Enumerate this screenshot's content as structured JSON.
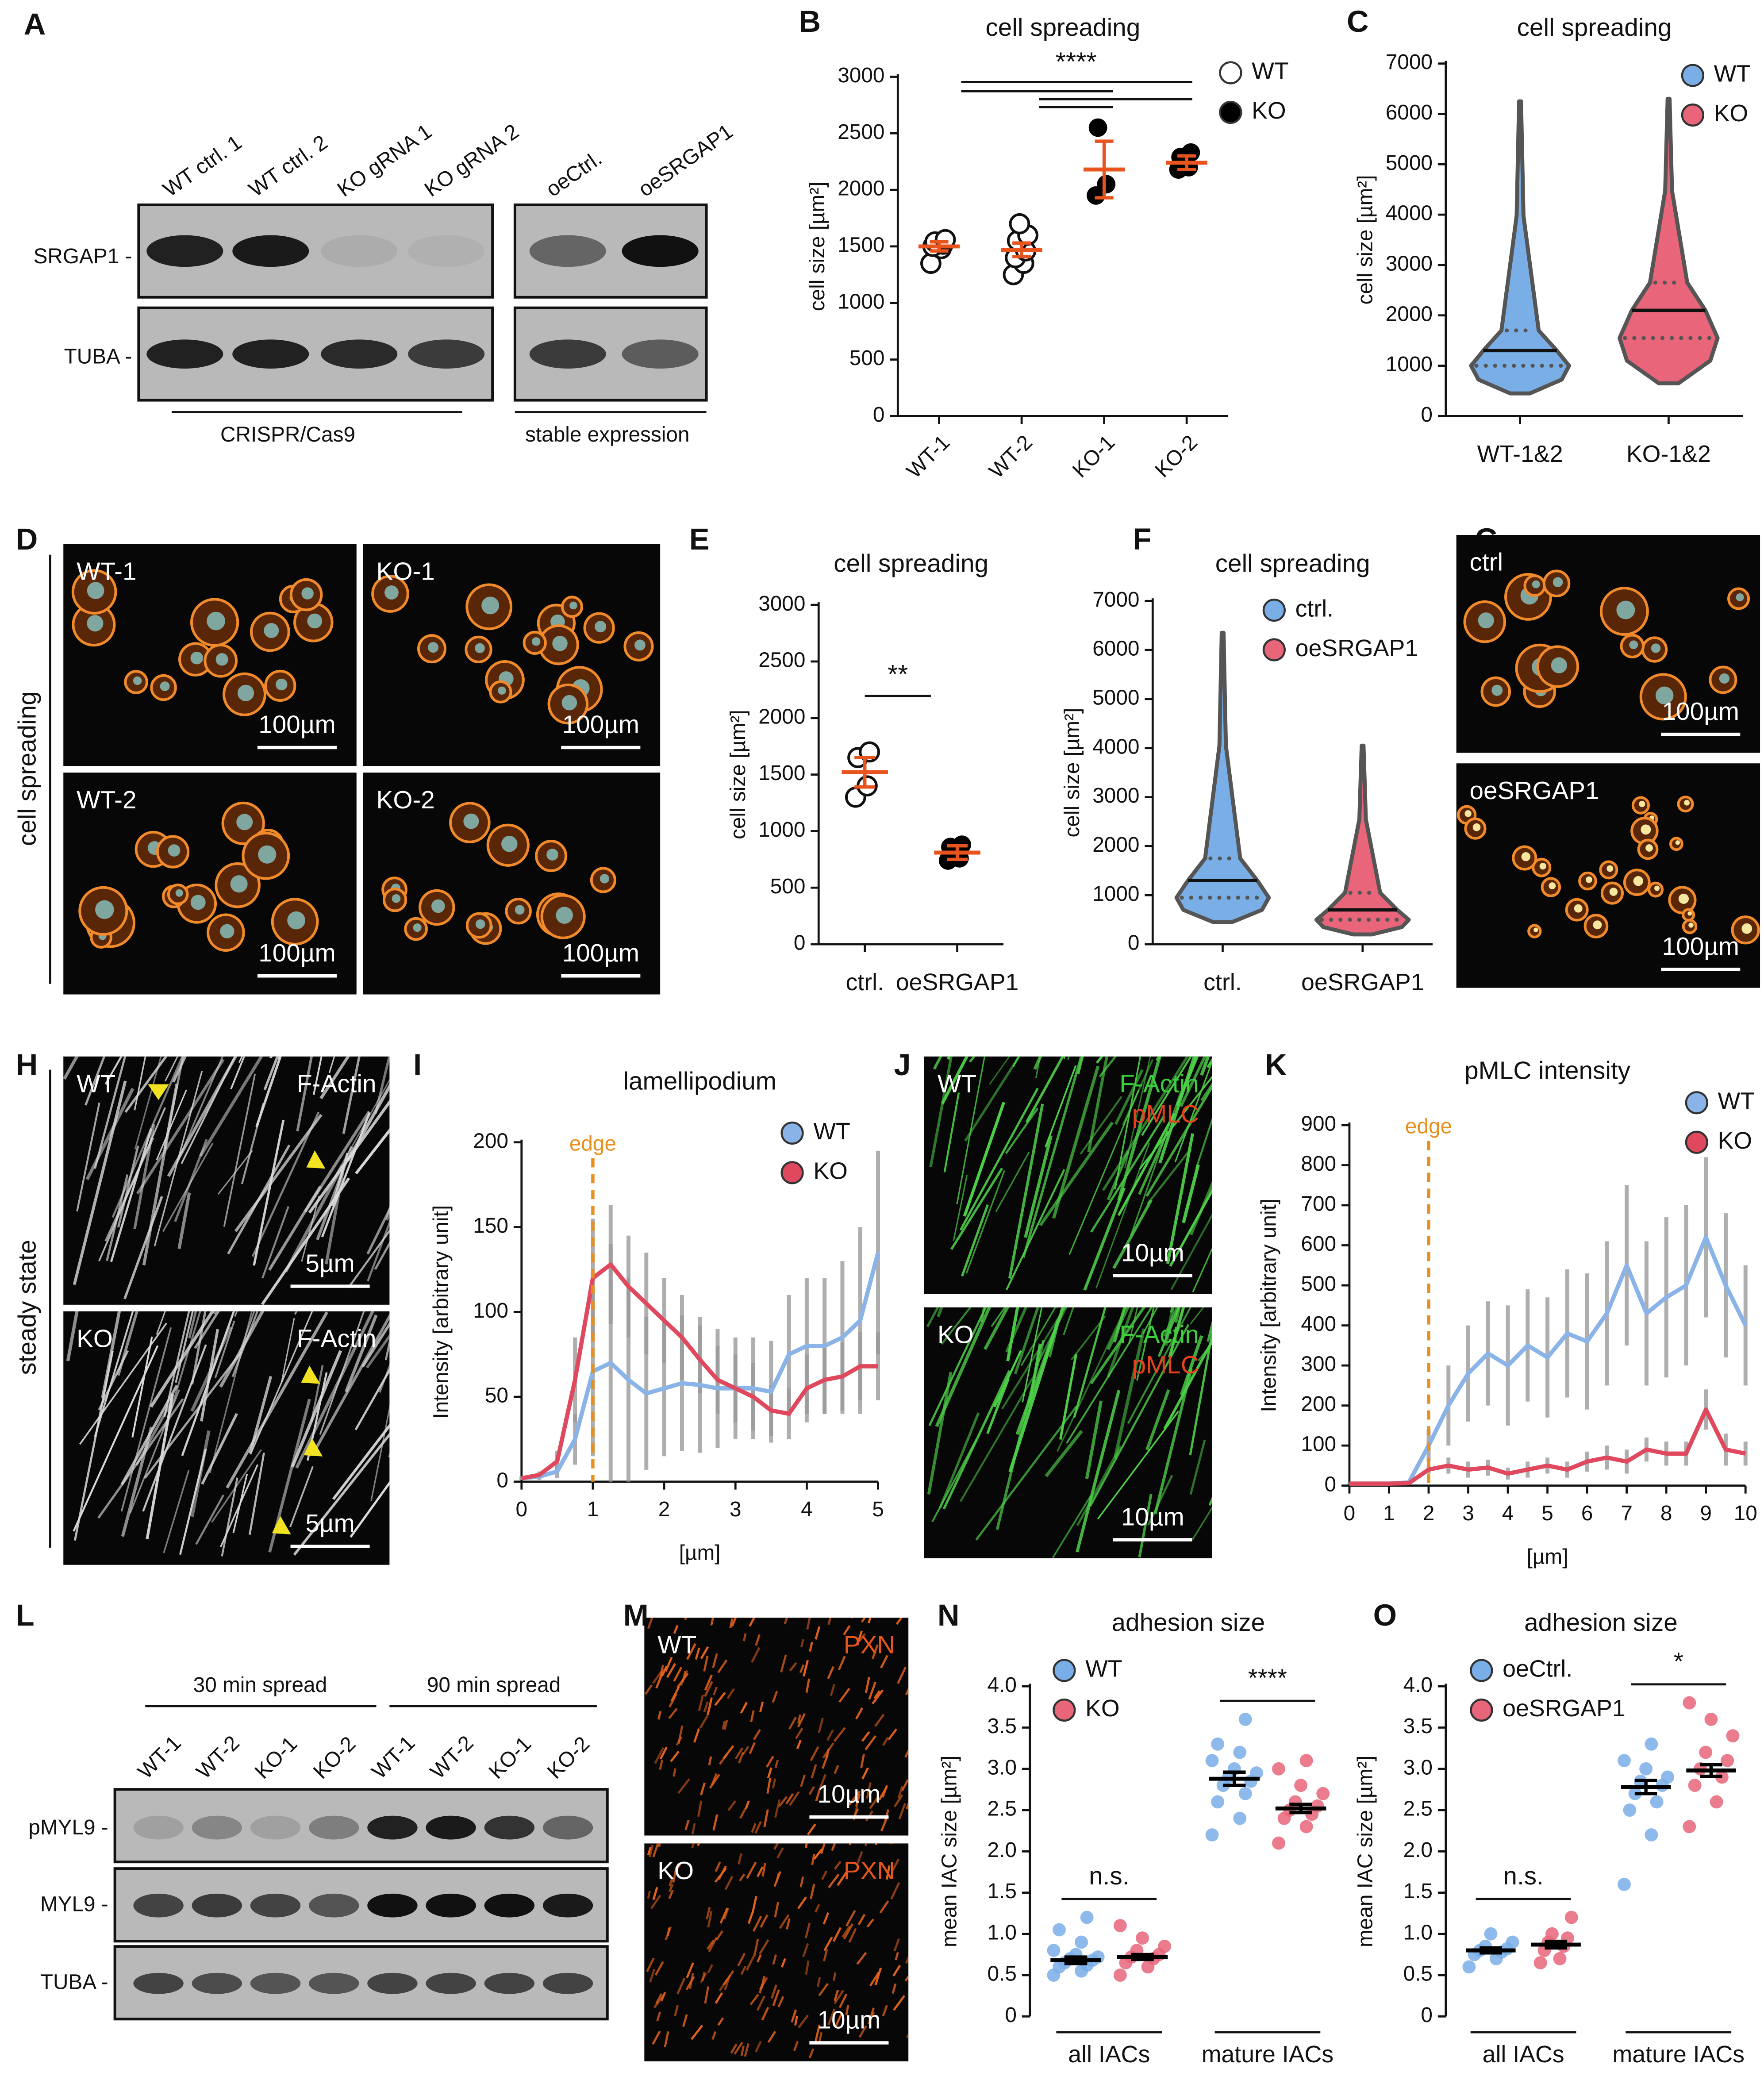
{
  "figure": {
    "panels": [
      "A",
      "B",
      "C",
      "D",
      "E",
      "F",
      "G",
      "H",
      "I",
      "J",
      "K",
      "L",
      "M",
      "N",
      "O"
    ],
    "blot_a": {
      "lanes": [
        "WT ctrl. 1",
        "WT ctrl. 2",
        "KO gRNA 1",
        "KO gRNA 2",
        "oeCtrl.",
        "oeSRGAP1"
      ],
      "rows": [
        "SRGAP1 -",
        "TUBA -"
      ],
      "groups": [
        "CRISPR/Cas9",
        "stable expression"
      ]
    },
    "panel_d": {
      "labels": [
        "WT-1",
        "KO-1",
        "WT-2",
        "KO-2"
      ],
      "scale": "100µm",
      "side": "cell spreading"
    },
    "panel_g": {
      "labels": [
        "ctrl",
        "oeSRGAP1"
      ],
      "scale": "100µm"
    },
    "panel_h": {
      "labels": [
        "WT",
        "KO"
      ],
      "stain": "F-Actin",
      "scale": "5µm",
      "side": "steady state"
    },
    "panel_j": {
      "labels": [
        "WT",
        "KO"
      ],
      "stains": [
        "F-Actin",
        "pMLC"
      ],
      "scale": "10µm"
    },
    "blot_l": {
      "groups": [
        "30 min spread",
        "90 min spread"
      ],
      "lanes": [
        "WT-1",
        "WT-2",
        "KO-1",
        "KO-2",
        "WT-1",
        "WT-2",
        "KO-1",
        "KO-2"
      ],
      "rows": [
        "pMYL9 -",
        "MYL9 -",
        "TUBA -"
      ]
    },
    "panel_m": {
      "labels": [
        "WT",
        "KO"
      ],
      "stain": "PXN",
      "scale": "10µm"
    }
  },
  "chart_data": [
    {
      "type": "dot",
      "title": "cell spreading",
      "ylabel": "cell size [µm²]",
      "categories": [
        "WT-1",
        "WT-2",
        "KO-1",
        "KO-2"
      ],
      "series": [
        {
          "name": "WT",
          "color": "#ffffff",
          "values": [
            1500,
            1470,
            null,
            null
          ],
          "errors": [
            40,
            60,
            null,
            null
          ],
          "points": [
            [
              1350,
              1480,
              1500,
              1520,
              1540,
              1560
            ],
            [
              1250,
              1350,
              1400,
              1460,
              1550,
              1600,
              1700
            ],
            null,
            null
          ]
        },
        {
          "name": "KO",
          "color": "#000000",
          "values": [
            null,
            null,
            2180,
            2240
          ],
          "errors": [
            null,
            null,
            250,
            60
          ],
          "points": [
            null,
            null,
            [
              1950,
              2050,
              2550
            ],
            [
              2180,
              2200,
              2290,
              2330
            ]
          ]
        }
      ],
      "mean_color": "#e8541e",
      "annotation": "****",
      "ylim": [
        0,
        3000
      ],
      "yticks": [
        0,
        500,
        1000,
        1500,
        2000,
        2500,
        3000
      ]
    },
    {
      "type": "violin",
      "title": "cell spreading",
      "ylabel": "cell size [µm²]",
      "categories": [
        "WT-1&2",
        "KO-1&2"
      ],
      "series": [
        {
          "name": "WT",
          "color": "#7aaee6",
          "values": [
            1300,
            null
          ],
          "q1": [
            1000,
            null
          ],
          "q3": [
            1700,
            null
          ],
          "min": [
            450,
            null
          ],
          "max": [
            6250,
            null
          ]
        },
        {
          "name": "KO",
          "color": "#e8657a",
          "values": [
            null,
            2100
          ],
          "q1": [
            null,
            1550
          ],
          "q3": [
            null,
            2650
          ],
          "min": [
            null,
            650
          ],
          "max": [
            null,
            6300
          ]
        }
      ],
      "ylim": [
        0,
        7000
      ],
      "yticks": [
        0,
        1000,
        2000,
        3000,
        4000,
        5000,
        6000,
        7000
      ]
    },
    {
      "type": "dot",
      "title": "cell spreading",
      "ylabel": "cell size [µm²]",
      "categories": [
        "ctrl.",
        "oeSRGAP1"
      ],
      "values": [
        1520,
        810
      ],
      "errors": [
        130,
        60
      ],
      "points": [
        [
          1300,
          1400,
          1650,
          1700
        ],
        [
          740,
          760,
          860,
          880
        ]
      ],
      "colors": [
        "#ffffff",
        "#000000"
      ],
      "mean_color": "#e8541e",
      "annotation": "**",
      "ylim": [
        0,
        3000
      ],
      "yticks": [
        0,
        500,
        1000,
        1500,
        2000,
        2500,
        3000
      ]
    },
    {
      "type": "violin",
      "title": "cell spreading",
      "ylabel": "cell size [µm²]",
      "categories": [
        "ctrl.",
        "oeSRGAP1"
      ],
      "series": [
        {
          "name": "ctrl.",
          "color": "#7aaee6",
          "values": [
            1300,
            null
          ],
          "q1": [
            950,
            null
          ],
          "q3": [
            1750,
            null
          ],
          "min": [
            450,
            null
          ],
          "max": [
            6350,
            null
          ]
        },
        {
          "name": "oeSRGAP1",
          "color": "#e8657a",
          "values": [
            null,
            700
          ],
          "q1": [
            null,
            500
          ],
          "q3": [
            null,
            1050
          ],
          "min": [
            null,
            200
          ],
          "max": [
            null,
            4050
          ]
        }
      ],
      "ylim": [
        0,
        7000
      ],
      "yticks": [
        0,
        1000,
        2000,
        3000,
        4000,
        5000,
        6000,
        7000
      ]
    },
    {
      "type": "line",
      "title": "lamellipodium",
      "xlabel": "[µm]",
      "ylabel": "Intensity [arbitrary unit]",
      "x": [
        0,
        0.25,
        0.5,
        0.75,
        1,
        1.25,
        1.5,
        1.75,
        2,
        2.25,
        2.5,
        2.75,
        3,
        3.25,
        3.5,
        3.75,
        4,
        4.25,
        4.5,
        4.75,
        5
      ],
      "series": [
        {
          "name": "WT",
          "color": "#8ab4e8",
          "values": [
            2,
            3,
            6,
            25,
            65,
            70,
            60,
            52,
            55,
            58,
            57,
            55,
            55,
            55,
            53,
            75,
            80,
            80,
            85,
            95,
            135
          ],
          "errors": [
            1,
            2,
            4,
            15,
            50,
            70,
            60,
            45,
            40,
            40,
            40,
            35,
            30,
            30,
            30,
            35,
            40,
            40,
            45,
            55,
            60
          ]
        },
        {
          "name": "KO",
          "color": "#e0485d",
          "values": [
            2,
            4,
            12,
            60,
            120,
            128,
            115,
            105,
            95,
            85,
            72,
            60,
            55,
            50,
            42,
            40,
            55,
            60,
            62,
            68,
            68
          ],
          "errors": [
            1,
            2,
            6,
            25,
            35,
            35,
            30,
            30,
            25,
            25,
            20,
            20,
            20,
            20,
            15,
            15,
            20,
            20,
            20,
            20,
            20
          ]
        }
      ],
      "annotation": {
        "text": "edge",
        "x": 1
      },
      "xlim": [
        0,
        5
      ],
      "xticks": [
        0,
        1,
        2,
        3,
        4,
        5
      ],
      "ylim": [
        0,
        200
      ],
      "yticks": [
        0,
        50,
        100,
        150,
        200
      ]
    },
    {
      "type": "line",
      "title": "pMLC intensity",
      "xlabel": "[µm]",
      "ylabel": "Intensity [arbitrary unit]",
      "x": [
        0,
        0.5,
        1,
        1.5,
        2,
        2.5,
        3,
        3.5,
        4,
        4.5,
        5,
        5.5,
        6,
        6.5,
        7,
        7.5,
        8,
        8.5,
        9,
        9.5,
        10
      ],
      "series": [
        {
          "name": "WT",
          "color": "#8ab4e8",
          "values": [
            5,
            5,
            5,
            8,
            100,
            200,
            280,
            330,
            300,
            350,
            320,
            380,
            360,
            430,
            550,
            430,
            470,
            500,
            620,
            500,
            400
          ],
          "errors": [
            2,
            2,
            2,
            4,
            40,
            100,
            120,
            130,
            150,
            140,
            150,
            160,
            170,
            180,
            200,
            180,
            200,
            200,
            200,
            180,
            150
          ]
        },
        {
          "name": "KO",
          "color": "#e0485d",
          "values": [
            5,
            5,
            5,
            6,
            40,
            50,
            40,
            45,
            30,
            40,
            50,
            40,
            60,
            70,
            60,
            90,
            80,
            80,
            190,
            90,
            80
          ],
          "errors": [
            1,
            1,
            1,
            2,
            10,
            20,
            20,
            20,
            15,
            20,
            20,
            20,
            25,
            30,
            30,
            30,
            30,
            30,
            50,
            40,
            30
          ]
        }
      ],
      "annotation": {
        "text": "edge",
        "x": 2
      },
      "xlim": [
        0,
        10
      ],
      "xticks": [
        0,
        1,
        2,
        3,
        4,
        5,
        6,
        7,
        8,
        9,
        10
      ],
      "ylim": [
        0,
        900
      ],
      "yticks": [
        0,
        100,
        200,
        300,
        400,
        500,
        600,
        700,
        800,
        900
      ]
    },
    {
      "type": "dot",
      "title": "adhesion size",
      "ylabel": "mean IAC size [µm²]",
      "categories": [
        "all IACs",
        "mature IACs"
      ],
      "series": [
        {
          "name": "WT",
          "color": "#79aee8",
          "values": [
            0.68,
            2.88
          ],
          "errors": [
            0.04,
            0.08
          ],
          "points": [
            [
              0.5,
              0.55,
              0.6,
              0.62,
              0.65,
              0.68,
              0.7,
              0.72,
              0.75,
              0.8,
              0.9,
              1.05,
              1.2
            ],
            [
              2.2,
              2.4,
              2.6,
              2.7,
              2.8,
              2.85,
              2.9,
              2.95,
              3.0,
              3.1,
              3.2,
              3.3,
              3.6
            ]
          ]
        },
        {
          "name": "KO",
          "color": "#e8657a",
          "values": [
            0.72,
            2.52
          ],
          "errors": [
            0.03,
            0.05
          ],
          "points": [
            [
              0.5,
              0.6,
              0.65,
              0.7,
              0.72,
              0.75,
              0.8,
              0.85,
              0.95,
              1.1
            ],
            [
              2.1,
              2.3,
              2.4,
              2.45,
              2.5,
              2.55,
              2.6,
              2.7,
              2.8,
              3.0,
              3.1
            ]
          ]
        }
      ],
      "mean_color": "#000000",
      "annotations": [
        "n.s.",
        "****"
      ],
      "ylim": [
        0,
        4
      ],
      "yticks": [
        0,
        0.5,
        {
          "value": 1,
          "label": "1.0"
        },
        1.5,
        {
          "value": 2,
          "label": "2.0"
        },
        2.5,
        {
          "value": 3,
          "label": "3.0"
        },
        3.5,
        {
          "value": 4,
          "label": "4.0"
        }
      ]
    },
    {
      "type": "dot",
      "title": "adhesion size",
      "ylabel": "mean IAC size [µm²]",
      "categories": [
        "all IACs",
        "mature IACs"
      ],
      "series": [
        {
          "name": "oeCtrl.",
          "color": "#79aee8",
          "values": [
            0.8,
            2.78
          ],
          "errors": [
            0.03,
            0.08
          ],
          "points": [
            [
              0.6,
              0.7,
              0.75,
              0.78,
              0.8,
              0.82,
              0.85,
              0.9,
              1.0
            ],
            [
              1.6,
              2.2,
              2.5,
              2.6,
              2.7,
              2.8,
              2.85,
              2.9,
              3.0,
              3.1,
              3.3
            ]
          ]
        },
        {
          "name": "oeSRGAP1",
          "color": "#e8657a",
          "values": [
            0.87,
            2.98
          ],
          "errors": [
            0.04,
            0.07
          ],
          "points": [
            [
              0.65,
              0.7,
              0.8,
              0.85,
              0.9,
              0.95,
              1.0,
              1.2
            ],
            [
              2.3,
              2.6,
              2.8,
              2.9,
              3.0,
              3.1,
              3.2,
              3.4,
              3.6,
              3.8
            ]
          ]
        }
      ],
      "mean_color": "#000000",
      "annotations": [
        "n.s.",
        "*"
      ],
      "ylim": [
        0,
        4
      ],
      "yticks": [
        0,
        0.5,
        {
          "value": 1,
          "label": "1.0"
        },
        1.5,
        {
          "value": 2,
          "label": "2.0"
        },
        2.5,
        {
          "value": 3,
          "label": "3.0"
        },
        3.5,
        {
          "value": 4,
          "label": "4.0"
        }
      ]
    }
  ]
}
